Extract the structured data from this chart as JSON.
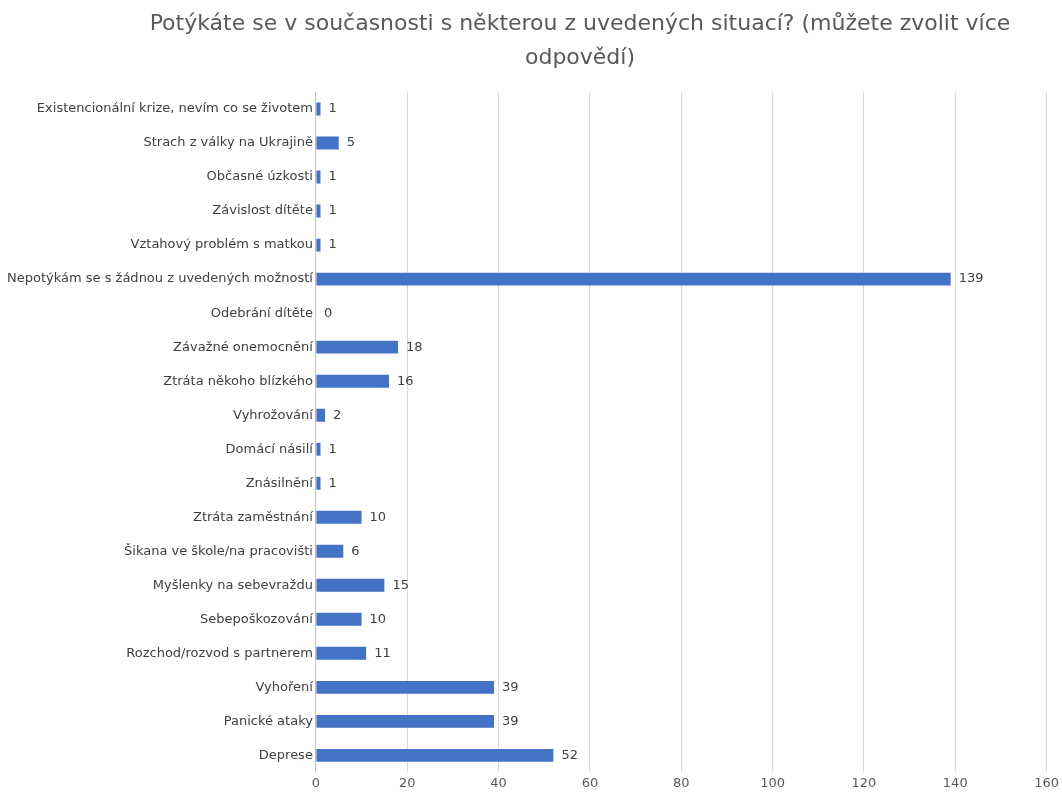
{
  "chart_data": {
    "type": "bar",
    "orientation": "horizontal",
    "title": "Potýkáte se v současnosti s některou z uvedených situací? (můžete zvolit více odpovědí)",
    "categories": [
      "Existencionální krize, nevím co se životem",
      "Strach z války na Ukrajině",
      "Občasné úzkosti",
      "Závislost dítěte",
      "Vztahový problém s matkou",
      "Nepotýkám se s žádnou z uvedených možností",
      "Odebrání dítěte",
      "Závažné onemocnění",
      "Ztráta někoho blízkého",
      "Vyhrožování",
      "Domácí násilí",
      "Znásilnění",
      "Ztráta zaměstnání",
      "Šikana ve škole/na pracovišti",
      "Myšlenky na sebevraždu",
      "Sebepoškozování",
      "Rozchod/rozvod s partnerem",
      "Vyhoření",
      "Panické ataky",
      "Deprese"
    ],
    "values": [
      1,
      5,
      1,
      1,
      1,
      139,
      0,
      18,
      16,
      2,
      1,
      1,
      10,
      6,
      15,
      10,
      11,
      39,
      39,
      52
    ],
    "color": "#4472c4",
    "xlim": [
      0,
      160
    ],
    "xticks": [
      0,
      20,
      40,
      60,
      80,
      100,
      120,
      140,
      160
    ],
    "grid": "x",
    "data_labels": true,
    "legend": false
  }
}
